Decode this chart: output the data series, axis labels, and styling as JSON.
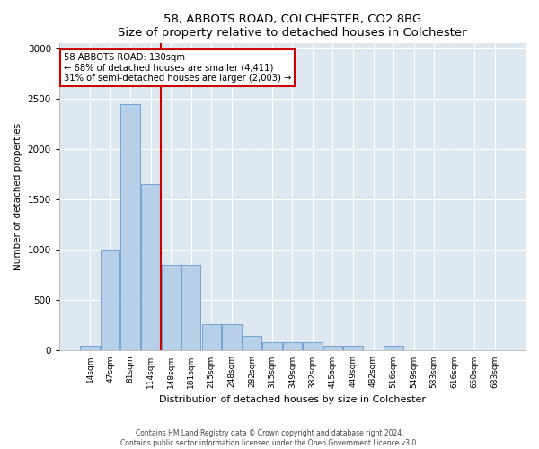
{
  "title1": "58, ABBOTS ROAD, COLCHESTER, CO2 8BG",
  "title2": "Size of property relative to detached houses in Colchester",
  "xlabel": "Distribution of detached houses by size in Colchester",
  "ylabel": "Number of detached properties",
  "footer1": "Contains HM Land Registry data © Crown copyright and database right 2024.",
  "footer2": "Contains public sector information licensed under the Open Government Licence v3.0.",
  "bar_color": "#b8cfe8",
  "bar_edge_color": "#6699cc",
  "background_color": "#dde8f0",
  "annotation_box_color": "#cc0000",
  "vline_color": "#cc0000",
  "categories": [
    "14sqm",
    "47sqm",
    "81sqm",
    "114sqm",
    "148sqm",
    "181sqm",
    "215sqm",
    "248sqm",
    "282sqm",
    "315sqm",
    "349sqm",
    "382sqm",
    "415sqm",
    "449sqm",
    "482sqm",
    "516sqm",
    "549sqm",
    "583sqm",
    "616sqm",
    "650sqm",
    "683sqm"
  ],
  "values": [
    50,
    1000,
    2450,
    1650,
    850,
    850,
    260,
    260,
    150,
    80,
    80,
    80,
    50,
    50,
    0,
    50,
    0,
    0,
    0,
    0,
    0
  ],
  "vline_x": 3.5,
  "ylim": [
    0,
    3050
  ],
  "yticks": [
    0,
    500,
    1000,
    1500,
    2000,
    2500,
    3000
  ],
  "annotation_text": "58 ABBOTS ROAD: 130sqm\n← 68% of detached houses are smaller (4,411)\n31% of semi-detached houses are larger (2,003) →"
}
